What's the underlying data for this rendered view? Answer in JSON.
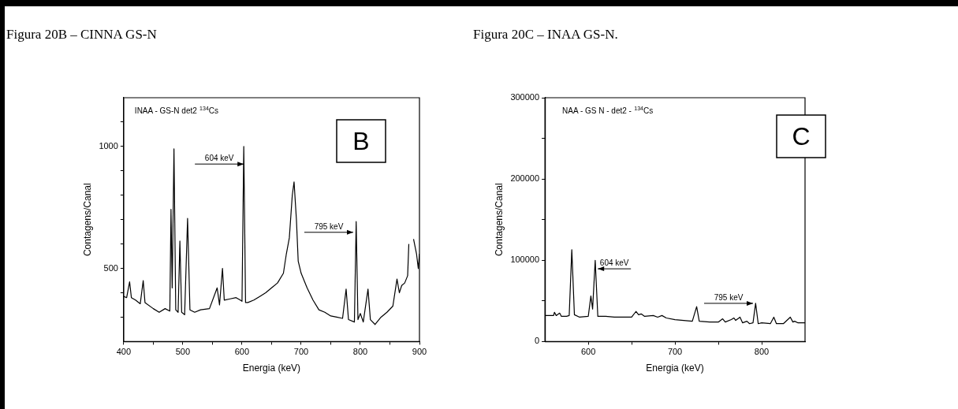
{
  "chart_data": [
    {
      "type": "line",
      "title": "Figura 20B – CINNA GS-N",
      "xlabel": "Energia (keV)",
      "ylabel": "Contagens/Canal",
      "xlim": [
        400,
        900
      ],
      "xticks": [
        400,
        {
          "value": 450,
          "label": null
        },
        500,
        {
          "value": 550,
          "label": null
        },
        600,
        {
          "value": 650,
          "label": null
        },
        700,
        {
          "value": 750,
          "label": null
        },
        800,
        {
          "value": 850,
          "label": null
        },
        900
      ],
      "ylim": [
        200,
        1200
      ],
      "yticks": [
        {
          "value": 300,
          "label": null
        },
        {
          "value": 400,
          "label": null
        },
        500,
        {
          "value": 600,
          "label": null
        },
        {
          "value": 700,
          "label": null
        },
        {
          "value": 800,
          "label": null
        },
        {
          "value": 900,
          "label": null
        },
        1000,
        {
          "value": 1100,
          "label": null
        }
      ],
      "series": [
        {
          "color": "#000000",
          "x": [
            400,
            405,
            410,
            413,
            420,
            428,
            433,
            436,
            450,
            460,
            470,
            478,
            480,
            482,
            485,
            488,
            492,
            495,
            498,
            503,
            508,
            512,
            520,
            530,
            545,
            558,
            562,
            567,
            570,
            580,
            590,
            597,
            600,
            603,
            606,
            610,
            620,
            630,
            640,
            650,
            660,
            670,
            675,
            680,
            685,
            688,
            692,
            695,
            700,
            710,
            720,
            730,
            740,
            750,
            760,
            770,
            776,
            780,
            790,
            793,
            796,
            800,
            805,
            813,
            817,
            825,
            835,
            845,
            855,
            862,
            866,
            870,
            875,
            880,
            882,
            884,
            889,
            890,
            895,
            898,
            900
          ],
          "values": [
            385,
            380,
            445,
            380,
            370,
            355,
            450,
            360,
            335,
            320,
            335,
            325,
            742,
            420,
            990,
            330,
            320,
            612,
            320,
            310,
            705,
            330,
            320,
            330,
            335,
            420,
            350,
            500,
            370,
            375,
            380,
            370,
            365,
            1000,
            360,
            360,
            370,
            385,
            400,
            420,
            440,
            480,
            560,
            625,
            800,
            855,
            700,
            530,
            480,
            420,
            370,
            330,
            320,
            305,
            300,
            295,
            415,
            290,
            280,
            692,
            290,
            315,
            280,
            415,
            290,
            270,
            300,
            320,
            345,
            456,
            400,
            430,
            440,
            470,
            600,
            null,
            null,
            620,
            560,
            500,
            560
          ]
        }
      ],
      "annotations": [
        "INAA - GS-N det2 $^{134}$Cs",
        "B",
        {
          "text": "604 keV",
          "x": 603,
          "y": 928
        },
        {
          "text": "795 keV",
          "x": 788,
          "y": 648
        }
      ]
    },
    {
      "type": "line",
      "title": "Figura 20C – INAA GS-N.",
      "xlabel": "Energia (keV)",
      "ylabel": "Contagens/Canal",
      "xlim": [
        550,
        850
      ],
      "xticks": [
        600,
        {
          "value": 650,
          "label": null
        },
        700,
        {
          "value": 750,
          "label": null
        },
        800
      ],
      "ylim": [
        0,
        300000
      ],
      "yticks": [
        0,
        {
          "value": 50000,
          "label": null
        },
        100000,
        {
          "value": 150000,
          "label": null
        },
        200000,
        {
          "value": 250000,
          "label": null
        },
        300000
      ],
      "series": [
        {
          "color": "#000000",
          "x": [
            550,
            560,
            561,
            563,
            567,
            569,
            575,
            578,
            581,
            584,
            590,
            600,
            603,
            605,
            608,
            611,
            620,
            630,
            650,
            655,
            658,
            661,
            665,
            675,
            680,
            685,
            690,
            700,
            710,
            720,
            725,
            728,
            740,
            750,
            755,
            758,
            765,
            768,
            770,
            775,
            778,
            783,
            786,
            790,
            793,
            796,
            800,
            810,
            814,
            817,
            825,
            833,
            836,
            838,
            842,
            850
          ],
          "values": [
            32000,
            32000,
            36000,
            32000,
            35000,
            31000,
            31000,
            32000,
            113000,
            33000,
            30000,
            31000,
            56000,
            40000,
            100000,
            31000,
            31000,
            30000,
            30000,
            37000,
            33000,
            34000,
            31000,
            32000,
            30000,
            32000,
            29000,
            27000,
            26000,
            25000,
            43000,
            25000,
            24000,
            24000,
            28000,
            24000,
            27000,
            29000,
            26000,
            30000,
            23000,
            25000,
            22000,
            23000,
            47000,
            22000,
            23000,
            22000,
            30000,
            22000,
            22000,
            30000,
            24000,
            25000,
            23000,
            23000
          ]
        }
      ],
      "annotations": [
        "NAA - GS N - det2 - $^{134}$Cs",
        "C",
        {
          "text": "604 keV",
          "x": 611,
          "y": 89500
        },
        {
          "text": "795 keV",
          "x": 790,
          "y": 47000
        }
      ]
    }
  ]
}
